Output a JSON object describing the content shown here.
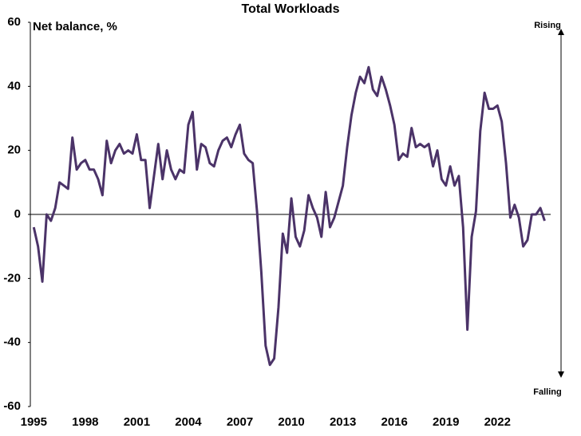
{
  "chart_data": {
    "type": "line",
    "title": "Total Workloads",
    "y_label": "Net balance, %",
    "annotations": [
      "Rising",
      "Falling"
    ],
    "x": [
      1995,
      1995.25,
      1995.5,
      1995.75,
      1996,
      1996.25,
      1996.5,
      1996.75,
      1997,
      1997.25,
      1997.5,
      1997.75,
      1998,
      1998.25,
      1998.5,
      1998.75,
      1999,
      1999.25,
      1999.5,
      1999.75,
      2000,
      2000.25,
      2000.5,
      2000.75,
      2001,
      2001.25,
      2001.5,
      2001.75,
      2002,
      2002.25,
      2002.5,
      2002.75,
      2003,
      2003.25,
      2003.5,
      2003.75,
      2004,
      2004.25,
      2004.5,
      2004.75,
      2005,
      2005.25,
      2005.5,
      2005.75,
      2006,
      2006.25,
      2006.5,
      2006.75,
      2007,
      2007.25,
      2007.5,
      2007.75,
      2008,
      2008.25,
      2008.5,
      2008.75,
      2009,
      2009.25,
      2009.5,
      2009.75,
      2010,
      2010.25,
      2010.5,
      2010.75,
      2011,
      2011.25,
      2011.5,
      2011.75,
      2012,
      2012.25,
      2012.5,
      2012.75,
      2013,
      2013.25,
      2013.5,
      2013.75,
      2014,
      2014.25,
      2014.5,
      2014.75,
      2015,
      2015.25,
      2015.5,
      2015.75,
      2016,
      2016.25,
      2016.5,
      2016.75,
      2017,
      2017.25,
      2017.5,
      2017.75,
      2018,
      2018.25,
      2018.5,
      2018.75,
      2019,
      2019.25,
      2019.5,
      2019.75,
      2020,
      2020.25,
      2020.5,
      2020.75,
      2021,
      2021.25,
      2021.5,
      2021.75,
      2022,
      2022.25,
      2022.5,
      2022.75,
      2023,
      2023.25,
      2023.5,
      2023.75,
      2024,
      2024.25,
      2024.5,
      2024.75
    ],
    "series": [
      {
        "name": "Total Workloads",
        "color": "#4b3368",
        "values": [
          -4,
          -10,
          -21,
          0,
          -2,
          2,
          10,
          9,
          8,
          24,
          14,
          16,
          17,
          14,
          14,
          11,
          6,
          23,
          16,
          20,
          22,
          19,
          20,
          19,
          25,
          17,
          17,
          2,
          12,
          22,
          11,
          20,
          14,
          11,
          14,
          13,
          28,
          32,
          14,
          22,
          21,
          16,
          15,
          20,
          23,
          24,
          21,
          25,
          28,
          19,
          17,
          16,
          1,
          -18,
          -41,
          -47,
          -45,
          -29,
          -6,
          -12,
          5,
          -7,
          -10,
          -5,
          6,
          2,
          -1,
          -7,
          7,
          -4,
          -1,
          4,
          9,
          21,
          31,
          38,
          43,
          41,
          46,
          39,
          37,
          43,
          39,
          34,
          28,
          17,
          19,
          18,
          27,
          21,
          22,
          21,
          22,
          15,
          20,
          11,
          9,
          15,
          9,
          12,
          -4,
          -36,
          -7,
          1,
          26,
          38,
          33,
          33,
          34,
          29,
          16,
          -1,
          3,
          -1,
          -10,
          -8,
          0,
          0,
          2,
          -2
        ]
      }
    ],
    "xlim": [
      1994.8,
      2025.1
    ],
    "xticks": [
      1995,
      1998,
      2001,
      2004,
      2007,
      2010,
      2013,
      2016,
      2019,
      2022
    ],
    "ylim": [
      -60,
      60
    ],
    "yticks": [
      -60,
      -40,
      -20,
      0,
      20,
      40,
      60
    ],
    "grid": false
  }
}
